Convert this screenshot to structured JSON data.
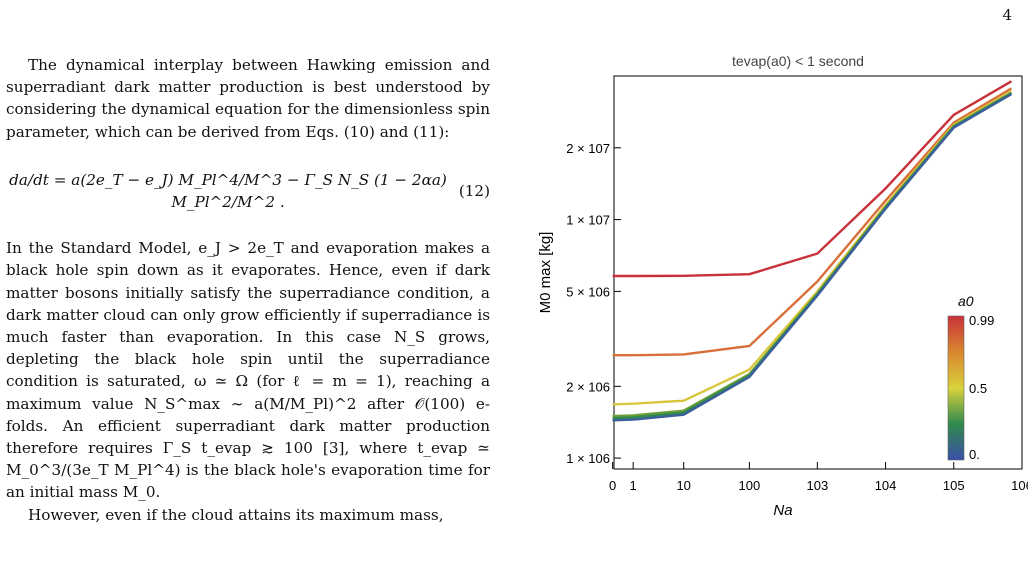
{
  "page_number": "4",
  "text": {
    "paragraph1": "The dynamical interplay between Hawking emission and superradiant dark matter production is best understood by considering the dynamical equation for the dimensionless spin parameter, which can be derived from Eqs. (10) and (11):",
    "equation": "da/dt = a(2e_T − e_J) M_Pl^4/M^3 − Γ_S N_S (1 − 2αa) M_Pl^2/M^2 .",
    "equation_number": "(12)",
    "paragraph2": "In the Standard Model, e_J > 2e_T and evaporation makes a black hole spin down as it evaporates. Hence, even if dark matter bosons initially satisfy the superradiance condition, a dark matter cloud can only grow efficiently if superradiance is much faster than evaporation. In this case N_S grows, depleting the black hole spin until the superradiance condition is saturated, ω ≃ Ω (for ℓ = m = 1), reaching a maximum value N_S^max ∼ a(M/M_Pl)^2 after 𝒪(100) e-folds. An efficient superradiant dark matter production therefore requires Γ_S t_evap ≳ 100 [3], where t_evap ≃ M_0^3/(3e_T M_Pl^4) is the black hole's evaporation time for an initial mass M_0.",
    "paragraph3": "However, even if the cloud attains its maximum mass,"
  },
  "chart_data": {
    "type": "line",
    "title": "t_evap(a_0) < 1 second",
    "xlabel": "N_a",
    "ylabel": "M_0 max  [kg]",
    "xscale": "log(1+x)",
    "yscale": "log",
    "xlim": [
      0,
      1000000
    ],
    "ylim": [
      900000,
      40000000
    ],
    "x_ticks": [
      "0",
      "1",
      "10",
      "100",
      "10^3",
      "10^4",
      "10^5",
      "10^6"
    ],
    "y_ticks": [
      "1 × 10^6",
      "2 × 10^6",
      "5 × 10^6",
      "1 × 10^7",
      "2 × 10^7"
    ],
    "legend": {
      "title": "a_0",
      "type": "colorbar",
      "ticks": [
        "0.99",
        "0.5",
        "0."
      ],
      "colors": [
        "#3b4fa8",
        "#2f8a4e",
        "#d9d23c",
        "#d9872f",
        "#c8313a"
      ]
    },
    "grid": false,
    "series": [
      {
        "color": "#c8313a",
        "x": [
          0,
          1,
          10,
          100,
          1000,
          10000,
          100000,
          700000
        ],
        "y": [
          5800000,
          5800000,
          5810000,
          5900000,
          7200000,
          13500000,
          27500000,
          38000000
        ]
      },
      {
        "color": "#d9703a",
        "x": [
          0,
          1,
          10,
          100,
          1000,
          10000,
          100000,
          700000
        ],
        "y": [
          2700000,
          2700000,
          2720000,
          2950000,
          5500000,
          12000000,
          25500000,
          35500000
        ]
      },
      {
        "color": "#d9c63c",
        "x": [
          0,
          1,
          10,
          100,
          1000,
          10000,
          100000,
          700000
        ],
        "y": [
          1680000,
          1690000,
          1740000,
          2350000,
          5000000,
          11500000,
          25000000,
          34500000
        ]
      },
      {
        "color": "#6b9e3a",
        "x": [
          0,
          1,
          10,
          100,
          1000,
          10000,
          100000,
          700000
        ],
        "y": [
          1500000,
          1510000,
          1580000,
          2250000,
          4900000,
          11300000,
          24700000,
          34000000
        ]
      },
      {
        "color": "#2f8a4e",
        "x": [
          0,
          1,
          10,
          100,
          1000,
          10000,
          100000,
          700000
        ],
        "y": [
          1470000,
          1480000,
          1550000,
          2220000,
          4850000,
          11200000,
          24500000,
          33800000
        ]
      },
      {
        "color": "#3b5f9a",
        "x": [
          0,
          1,
          10,
          100,
          1000,
          10000,
          100000,
          700000
        ],
        "y": [
          1440000,
          1450000,
          1520000,
          2190000,
          4800000,
          11100000,
          24300000,
          33600000
        ]
      }
    ]
  }
}
